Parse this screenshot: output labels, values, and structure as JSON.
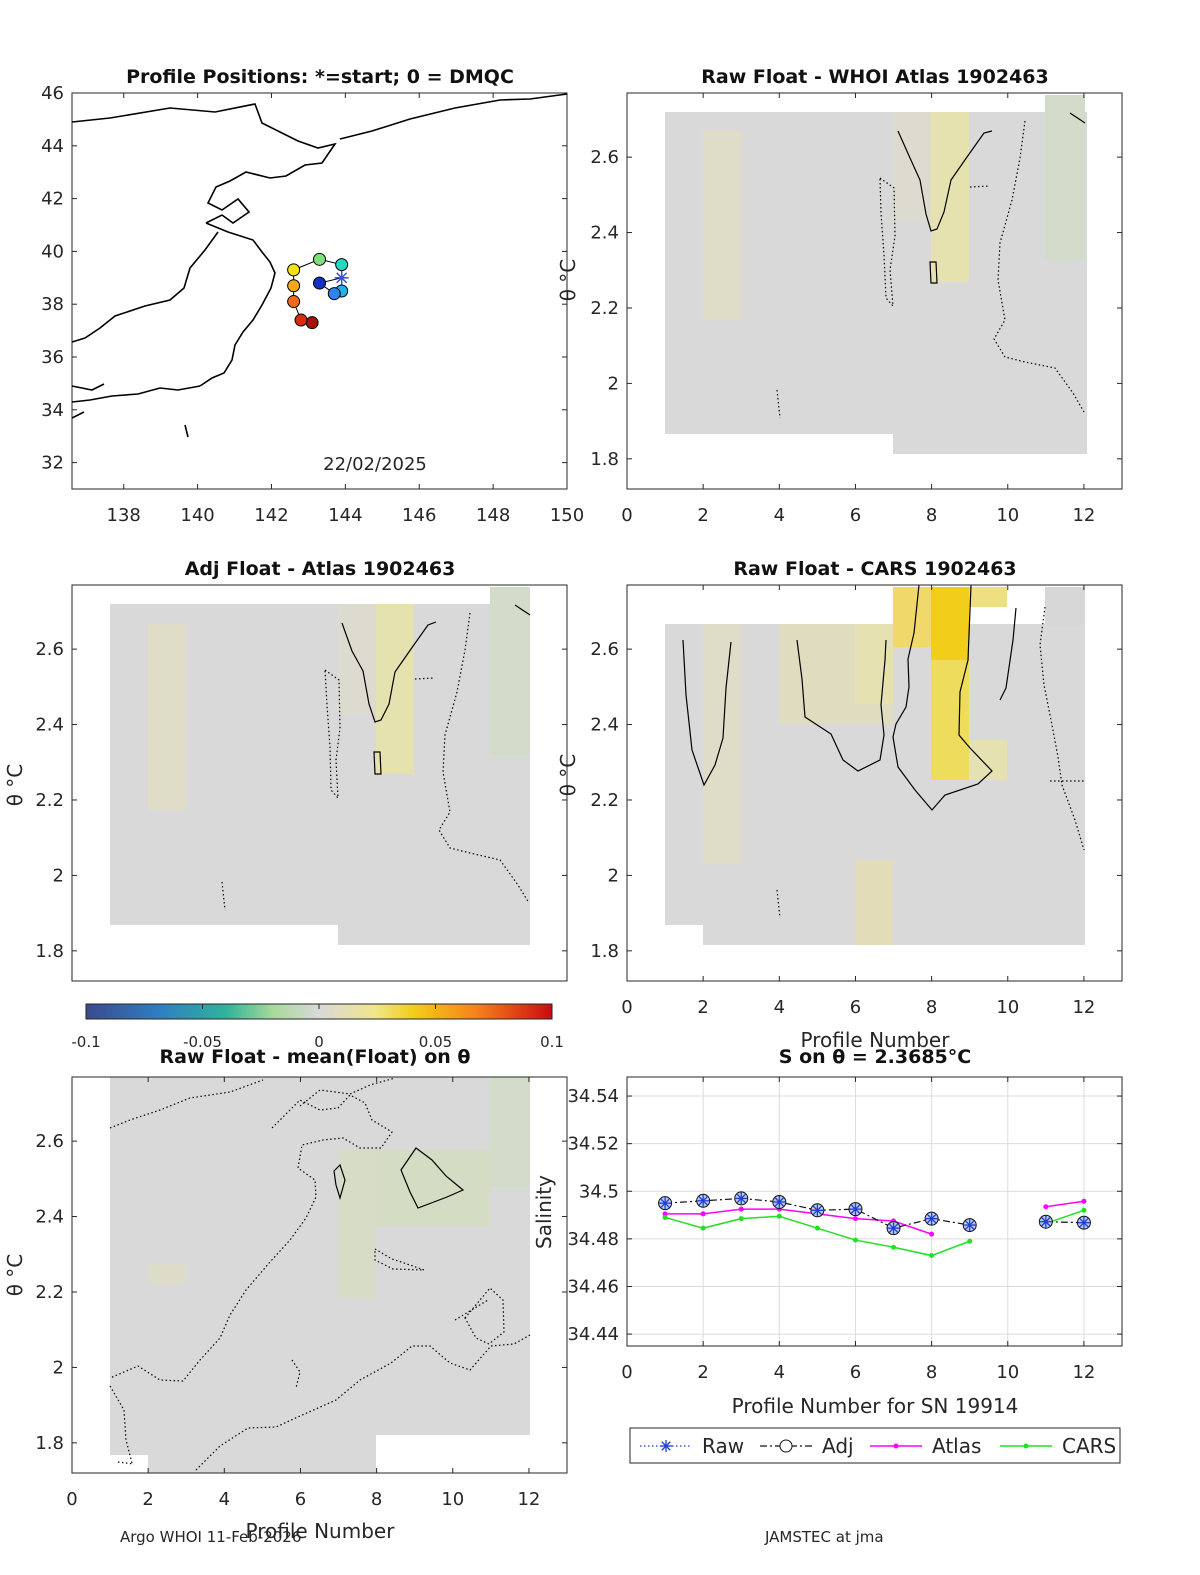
{
  "figure": {
    "footer_left": "Argo WHOI 11-Feb-2026",
    "footer_right": "JAMSTEC at jma",
    "colorbar": {
      "ticks": [
        "-0.1",
        "-0.05",
        "0",
        "0.05",
        "0.1"
      ],
      "min": -0.1,
      "max": 0.1
    }
  },
  "chart_data": [
    {
      "id": "map",
      "type": "scatter",
      "title": "Profile Positions: *=start; 0 = DMQC",
      "date_label": "22/02/2025",
      "xlim": [
        136.6,
        150
      ],
      "ylim": [
        31,
        46
      ],
      "xticks": [
        "138",
        "140",
        "142",
        "144",
        "146",
        "148",
        "150"
      ],
      "yticks": [
        "32",
        "34",
        "36",
        "38",
        "40",
        "42",
        "44",
        "46"
      ],
      "track": [
        {
          "profile": 1,
          "lon": 143.9,
          "lat": 39.0,
          "color": "#3a4bd6",
          "marker": "star"
        },
        {
          "profile": 2,
          "lon": 143.3,
          "lat": 38.8,
          "color": "#1530c8"
        },
        {
          "profile": 3,
          "lon": 143.7,
          "lat": 38.4,
          "color": "#2d86f0"
        },
        {
          "profile": 4,
          "lon": 143.9,
          "lat": 38.5,
          "color": "#1fb5e8"
        },
        {
          "profile": 5,
          "lon": 143.9,
          "lat": 39.5,
          "color": "#27d8c0"
        },
        {
          "profile": 6,
          "lon": 143.3,
          "lat": 39.7,
          "color": "#7ee07a"
        },
        {
          "profile": 7,
          "lon": 142.6,
          "lat": 39.3,
          "color": "#f2e21e"
        },
        {
          "profile": 8,
          "lon": 142.6,
          "lat": 38.7,
          "color": "#f5a623"
        },
        {
          "profile": 9,
          "lon": 142.6,
          "lat": 38.1,
          "color": "#ee6a1c"
        },
        {
          "profile": 10,
          "lon": 142.8,
          "lat": 37.4,
          "color": "#d92a12"
        },
        {
          "profile": 11,
          "lon": 143.1,
          "lat": 37.3,
          "color": "#a8110b"
        }
      ]
    },
    {
      "id": "raw-whoi",
      "type": "heatmap",
      "title": "Raw Float - WHOI Atlas  1902463",
      "xlim": [
        0,
        13
      ],
      "ylim": [
        1.72,
        2.77
      ],
      "xticks": [
        "0",
        "2",
        "4",
        "6",
        "8",
        "10",
        "12"
      ],
      "yticks": [
        "1.8",
        "2",
        "2.2",
        "2.4",
        "2.6"
      ],
      "ylabel": ""
    },
    {
      "id": "adj-atlas",
      "type": "heatmap",
      "title": "Adj Float - Atlas  1902463",
      "xlim": [
        0,
        13
      ],
      "ylim": [
        1.72,
        2.77
      ],
      "xticks": [],
      "yticks": [
        "1.8",
        "2",
        "2.2",
        "2.4",
        "2.6"
      ],
      "ylabel": "θ °C"
    },
    {
      "id": "raw-cars",
      "type": "heatmap",
      "title": "Raw Float - CARS  1902463",
      "xlim": [
        0,
        13
      ],
      "ylim": [
        1.72,
        2.77
      ],
      "xticks": [
        "0",
        "2",
        "4",
        "6",
        "8",
        "10",
        "12"
      ],
      "yticks": [
        "1.8",
        "2",
        "2.2",
        "2.4",
        "2.6"
      ],
      "xlabel": "Profile Number"
    },
    {
      "id": "raw-mean",
      "type": "heatmap",
      "title": "Raw Float - mean(Float) on θ",
      "xlim": [
        0,
        13
      ],
      "ylim": [
        1.72,
        2.77
      ],
      "xticks": [
        "0",
        "2",
        "4",
        "6",
        "8",
        "10",
        "12"
      ],
      "yticks": [
        "1.8",
        "2",
        "2.2",
        "2.4",
        "2.6"
      ],
      "xlabel": "Profile Number",
      "ylabel": "θ °C"
    },
    {
      "id": "salinity",
      "type": "line",
      "title": "S on θ = 2.3685°C",
      "xlabel": "Profile Number for SN 19914",
      "ylabel": "Salinity",
      "xlim": [
        0,
        13
      ],
      "ylim": [
        34.435,
        34.548
      ],
      "xticks": [
        "0",
        "2",
        "4",
        "6",
        "8",
        "10",
        "12"
      ],
      "yticks": [
        "34.44",
        "34.46",
        "34.48",
        "34.5",
        "34.52",
        "34.54"
      ],
      "series": [
        {
          "name": "Raw",
          "color": "#1f3fd6",
          "x": [
            1,
            2,
            3,
            4,
            5,
            6,
            7,
            8,
            9,
            11,
            12
          ],
          "y": [
            34.495,
            34.496,
            34.497,
            34.4955,
            34.492,
            34.4925,
            34.4845,
            34.4885,
            34.4858,
            34.4872,
            34.4868
          ]
        },
        {
          "name": "Adj",
          "color": "#111111",
          "x": [
            1,
            2,
            3,
            4,
            5,
            6,
            7,
            8,
            9,
            11,
            12
          ],
          "y": [
            34.495,
            34.496,
            34.497,
            34.4955,
            34.492,
            34.4925,
            34.4845,
            34.4885,
            34.4858,
            34.4872,
            34.4868
          ]
        },
        {
          "name": "Atlas",
          "color": "#ff00ff",
          "x": [
            1,
            2,
            3,
            4,
            5,
            6,
            7,
            8,
            11,
            12
          ],
          "y": [
            34.4905,
            34.4905,
            34.4925,
            34.4925,
            34.4905,
            34.4885,
            34.4875,
            34.482,
            34.4935,
            34.4958
          ]
        },
        {
          "name": "CARS",
          "color": "#22e022",
          "x": [
            1,
            2,
            3,
            4,
            5,
            6,
            7,
            8,
            9,
            11,
            12
          ],
          "y": [
            34.489,
            34.4845,
            34.4885,
            34.4895,
            34.4845,
            34.4795,
            34.4765,
            34.473,
            34.479,
            34.4865,
            34.492
          ]
        }
      ]
    }
  ]
}
